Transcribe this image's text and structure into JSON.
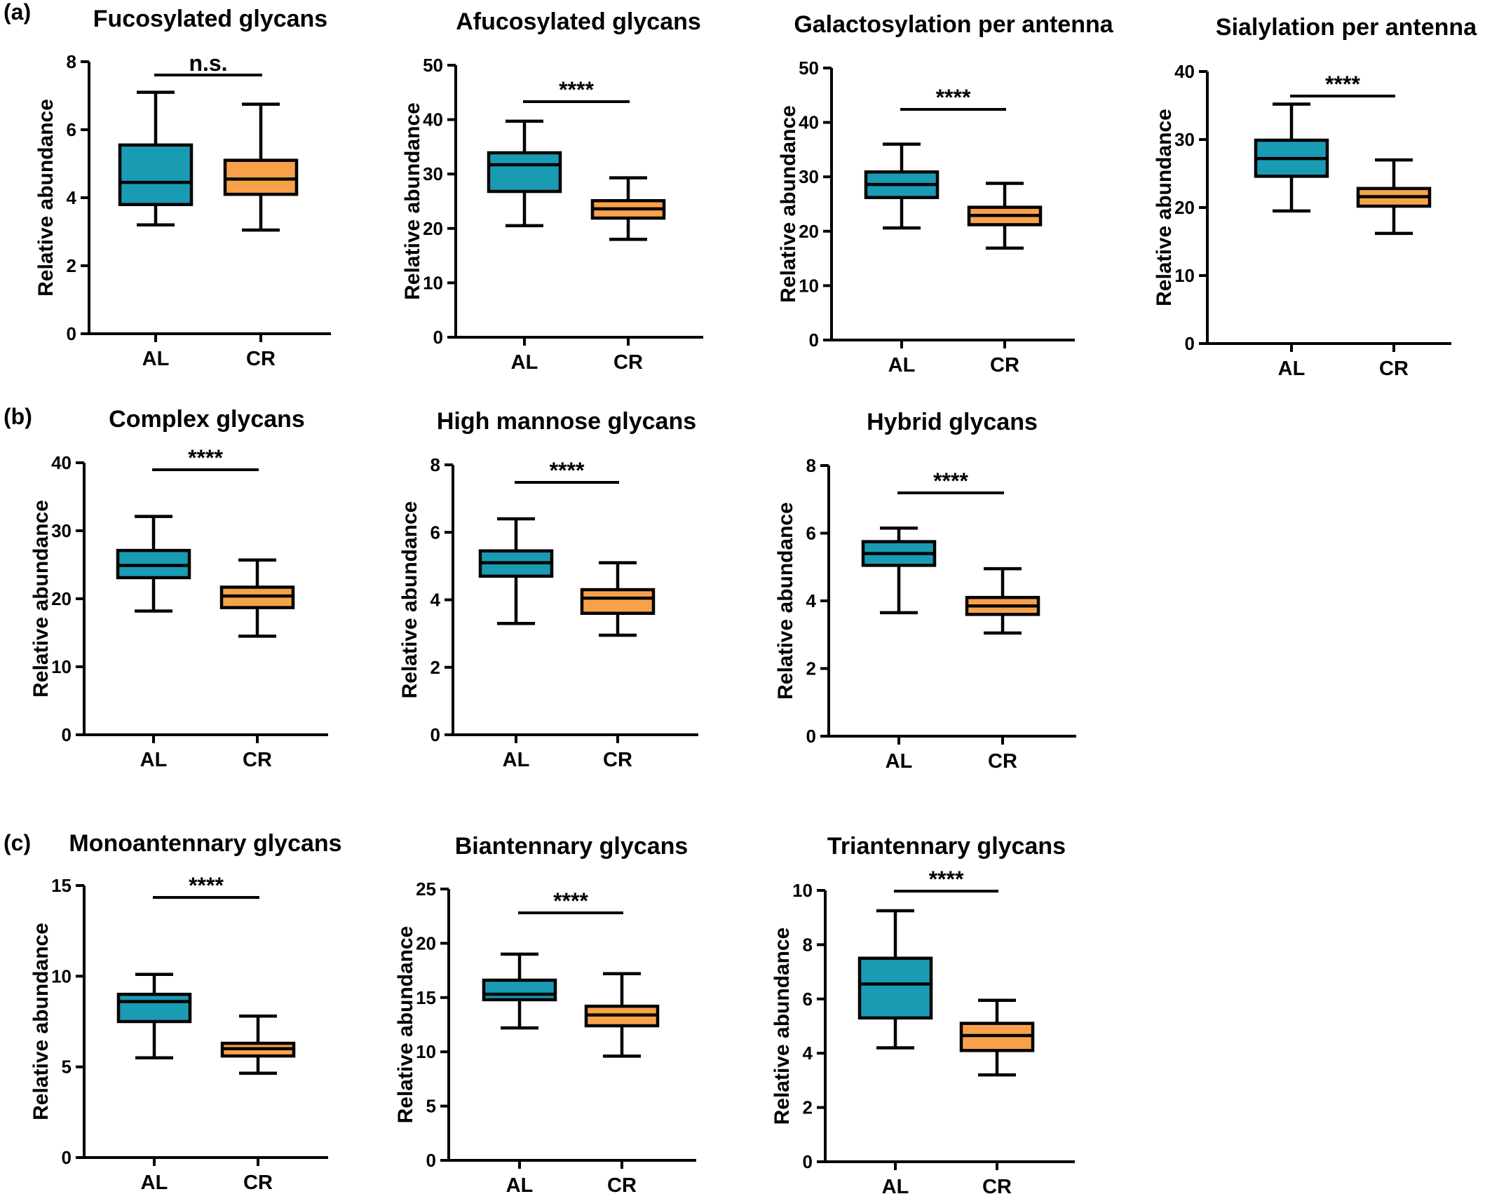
{
  "panel_labels": [
    "(a)",
    "(b)",
    "(c)"
  ],
  "colors": {
    "AL": "#1a9bb4",
    "CR": "#f7a24b",
    "stroke": "#000000"
  },
  "chart_data": [
    {
      "type": "box",
      "title": "Fucosylated glycans",
      "ylabel": "Relative abundance",
      "ylim": [
        0,
        8
      ],
      "yticks": [
        0,
        2,
        4,
        6,
        8
      ],
      "categories": [
        "AL",
        "CR"
      ],
      "significance": "n.s.",
      "boxes": [
        {
          "group": "AL",
          "min": 3.2,
          "q1": 3.8,
          "median": 4.45,
          "q3": 5.55,
          "max": 7.1
        },
        {
          "group": "CR",
          "min": 3.05,
          "q1": 4.1,
          "median": 4.55,
          "q3": 5.1,
          "max": 6.75
        }
      ]
    },
    {
      "type": "box",
      "title": "Afucosylated glycans",
      "ylabel": "Relative abundance",
      "ylim": [
        0,
        50
      ],
      "yticks": [
        0,
        10,
        20,
        30,
        40,
        50
      ],
      "categories": [
        "AL",
        "CR"
      ],
      "significance": "****",
      "boxes": [
        {
          "group": "AL",
          "min": 20.5,
          "q1": 26.8,
          "median": 31.7,
          "q3": 33.9,
          "max": 39.7
        },
        {
          "group": "CR",
          "min": 18.0,
          "q1": 21.9,
          "median": 23.6,
          "q3": 25.1,
          "max": 29.3
        }
      ]
    },
    {
      "type": "box",
      "title": "Galactosylation per antenna",
      "ylabel": "Relative abundance",
      "ylim": [
        0,
        50
      ],
      "yticks": [
        0,
        10,
        20,
        30,
        40,
        50
      ],
      "categories": [
        "AL",
        "CR"
      ],
      "significance": "****",
      "boxes": [
        {
          "group": "AL",
          "min": 20.6,
          "q1": 26.2,
          "median": 28.6,
          "q3": 30.9,
          "max": 36.0
        },
        {
          "group": "CR",
          "min": 16.9,
          "q1": 21.2,
          "median": 22.9,
          "q3": 24.4,
          "max": 28.8
        }
      ]
    },
    {
      "type": "box",
      "title": "Sialylation per antenna",
      "ylabel": "Relative abundance",
      "ylim": [
        0,
        40
      ],
      "yticks": [
        0,
        10,
        20,
        30,
        40
      ],
      "categories": [
        "AL",
        "CR"
      ],
      "significance": "****",
      "boxes": [
        {
          "group": "AL",
          "min": 19.5,
          "q1": 24.6,
          "median": 27.2,
          "q3": 29.9,
          "max": 35.2
        },
        {
          "group": "CR",
          "min": 16.2,
          "q1": 20.2,
          "median": 21.6,
          "q3": 22.8,
          "max": 27.0
        }
      ]
    },
    {
      "type": "box",
      "title": "Complex glycans",
      "ylabel": "Relative abundance",
      "ylim": [
        0,
        40
      ],
      "yticks": [
        0,
        10,
        20,
        30,
        40
      ],
      "categories": [
        "AL",
        "CR"
      ],
      "significance": "****",
      "boxes": [
        {
          "group": "AL",
          "min": 18.2,
          "q1": 23.1,
          "median": 24.9,
          "q3": 27.1,
          "max": 32.1
        },
        {
          "group": "CR",
          "min": 14.5,
          "q1": 18.7,
          "median": 20.4,
          "q3": 21.7,
          "max": 25.7
        }
      ]
    },
    {
      "type": "box",
      "title": "High mannose glycans",
      "ylabel": "Relative abundance",
      "ylim": [
        0,
        8
      ],
      "yticks": [
        0,
        2,
        4,
        6,
        8
      ],
      "categories": [
        "AL",
        "CR"
      ],
      "significance": "****",
      "boxes": [
        {
          "group": "AL",
          "min": 3.3,
          "q1": 4.7,
          "median": 5.1,
          "q3": 5.45,
          "max": 6.4
        },
        {
          "group": "CR",
          "min": 2.95,
          "q1": 3.6,
          "median": 4.05,
          "q3": 4.3,
          "max": 5.1
        }
      ]
    },
    {
      "type": "box",
      "title": "Hybrid glycans",
      "ylabel": "Relative abundance",
      "ylim": [
        0,
        8
      ],
      "yticks": [
        0,
        2,
        4,
        6,
        8
      ],
      "categories": [
        "AL",
        "CR"
      ],
      "significance": "****",
      "boxes": [
        {
          "group": "AL",
          "min": 3.65,
          "q1": 5.05,
          "median": 5.4,
          "q3": 5.75,
          "max": 6.15
        },
        {
          "group": "CR",
          "min": 3.05,
          "q1": 3.6,
          "median": 3.85,
          "q3": 4.1,
          "max": 4.95
        }
      ]
    },
    {
      "type": "box",
      "title": "Monoantennary glycans",
      "ylabel": "Relative abundance",
      "ylim": [
        0,
        15
      ],
      "yticks": [
        0,
        5,
        10,
        15
      ],
      "categories": [
        "AL",
        "CR"
      ],
      "significance": "****",
      "boxes": [
        {
          "group": "AL",
          "min": 5.5,
          "q1": 7.5,
          "median": 8.6,
          "q3": 9.0,
          "max": 10.1
        },
        {
          "group": "CR",
          "min": 4.65,
          "q1": 5.6,
          "median": 6.0,
          "q3": 6.3,
          "max": 7.8
        }
      ]
    },
    {
      "type": "box",
      "title": "Biantennary glycans",
      "ylabel": "Relative abundance",
      "ylim": [
        0,
        25
      ],
      "yticks": [
        0,
        5,
        10,
        15,
        20,
        25
      ],
      "categories": [
        "AL",
        "CR"
      ],
      "significance": "****",
      "boxes": [
        {
          "group": "AL",
          "min": 12.2,
          "q1": 14.8,
          "median": 15.3,
          "q3": 16.6,
          "max": 19.0
        },
        {
          "group": "CR",
          "min": 9.6,
          "q1": 12.4,
          "median": 13.4,
          "q3": 14.2,
          "max": 17.2
        }
      ]
    },
    {
      "type": "box",
      "title": "Triantennary glycans",
      "ylabel": "Relative abundance",
      "ylim": [
        0,
        10
      ],
      "yticks": [
        0,
        2,
        4,
        6,
        8,
        10
      ],
      "categories": [
        "AL",
        "CR"
      ],
      "significance": "****",
      "boxes": [
        {
          "group": "AL",
          "min": 4.2,
          "q1": 5.3,
          "median": 6.55,
          "q3": 7.5,
          "max": 9.25
        },
        {
          "group": "CR",
          "min": 3.2,
          "q1": 4.1,
          "median": 4.65,
          "q3": 5.1,
          "max": 5.95
        }
      ]
    }
  ]
}
